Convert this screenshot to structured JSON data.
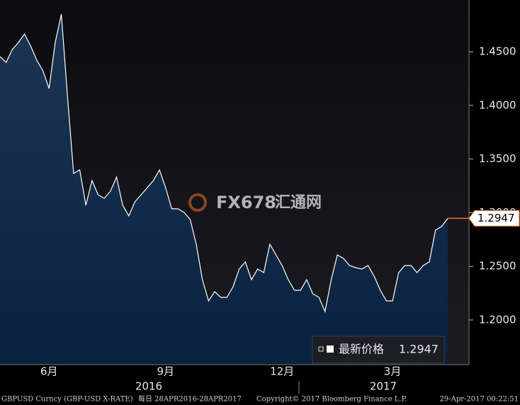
{
  "chart_data": {
    "type": "area",
    "categories": [
      null,
      null,
      null,
      null,
      null,
      null,
      null,
      null,
      "6月",
      null,
      null,
      null,
      null,
      null,
      null,
      null,
      null,
      null,
      null,
      null,
      null,
      null,
      null,
      null,
      null,
      null,
      null,
      "9月",
      null,
      null,
      null,
      null,
      null,
      null,
      null,
      null,
      null,
      null,
      null,
      null,
      null,
      null,
      null,
      null,
      null,
      null,
      "12月",
      null,
      null,
      null,
      null,
      null,
      null,
      null,
      null,
      null,
      null,
      null,
      null,
      null,
      null,
      null,
      null,
      null,
      "3月",
      null,
      null,
      null,
      null,
      null,
      null,
      null,
      null,
      null
    ],
    "years": [
      "2016",
      "2017"
    ],
    "series": [
      {
        "name": "最新价格",
        "color": "#ffffff",
        "values": [
          1.4454,
          1.4401,
          1.452,
          1.4586,
          1.4665,
          1.4553,
          1.4421,
          1.4322,
          1.4157,
          1.4586,
          1.485,
          1.4092,
          1.3366,
          1.34,
          1.307,
          1.33,
          1.3167,
          1.3134,
          1.32,
          1.3332,
          1.3069,
          1.297,
          1.3102,
          1.3167,
          1.3233,
          1.3299,
          1.3398,
          1.3233,
          1.3036,
          1.3036,
          1.3003,
          1.2937,
          1.2706,
          1.2376,
          1.2178,
          1.2264,
          1.2211,
          1.2211,
          1.231,
          1.2475,
          1.2541,
          1.2376,
          1.2475,
          1.2442,
          1.2706,
          1.2607,
          1.2508,
          1.2376,
          1.2277,
          1.2277,
          1.2376,
          1.2244,
          1.2211,
          1.2079,
          1.2376,
          1.2607,
          1.2574,
          1.2508,
          1.2488,
          1.2475,
          1.2508,
          1.2409,
          1.2277,
          1.2178,
          1.2178,
          1.2442,
          1.2508,
          1.2508,
          1.2442,
          1.2508,
          1.2541,
          1.2838,
          1.2871,
          1.2947
        ]
      }
    ],
    "ylim": [
      1.1584,
      1.4982
    ],
    "yticks": [
      {
        "value": 1.2,
        "label": "1.2000"
      },
      {
        "value": 1.25,
        "label": "1.2500"
      },
      {
        "value": 1.3,
        "label": "1.3000"
      },
      {
        "value": 1.35,
        "label": "1.3500"
      },
      {
        "value": 1.4,
        "label": "1.4000"
      },
      {
        "value": 1.45,
        "label": "1.4500"
      }
    ],
    "watermark": [
      "FX678",
      "汇通网"
    ],
    "footer": {
      "source": "GBPUSD Curncy (GBP-USD X-RATE)",
      "period": "每日 28APR2016-28APR2017",
      "copyright": "Copyright© 2017 Bloomberg Finance L.P.",
      "timestamp": "29-Apr-2017 00:22:51"
    }
  }
}
